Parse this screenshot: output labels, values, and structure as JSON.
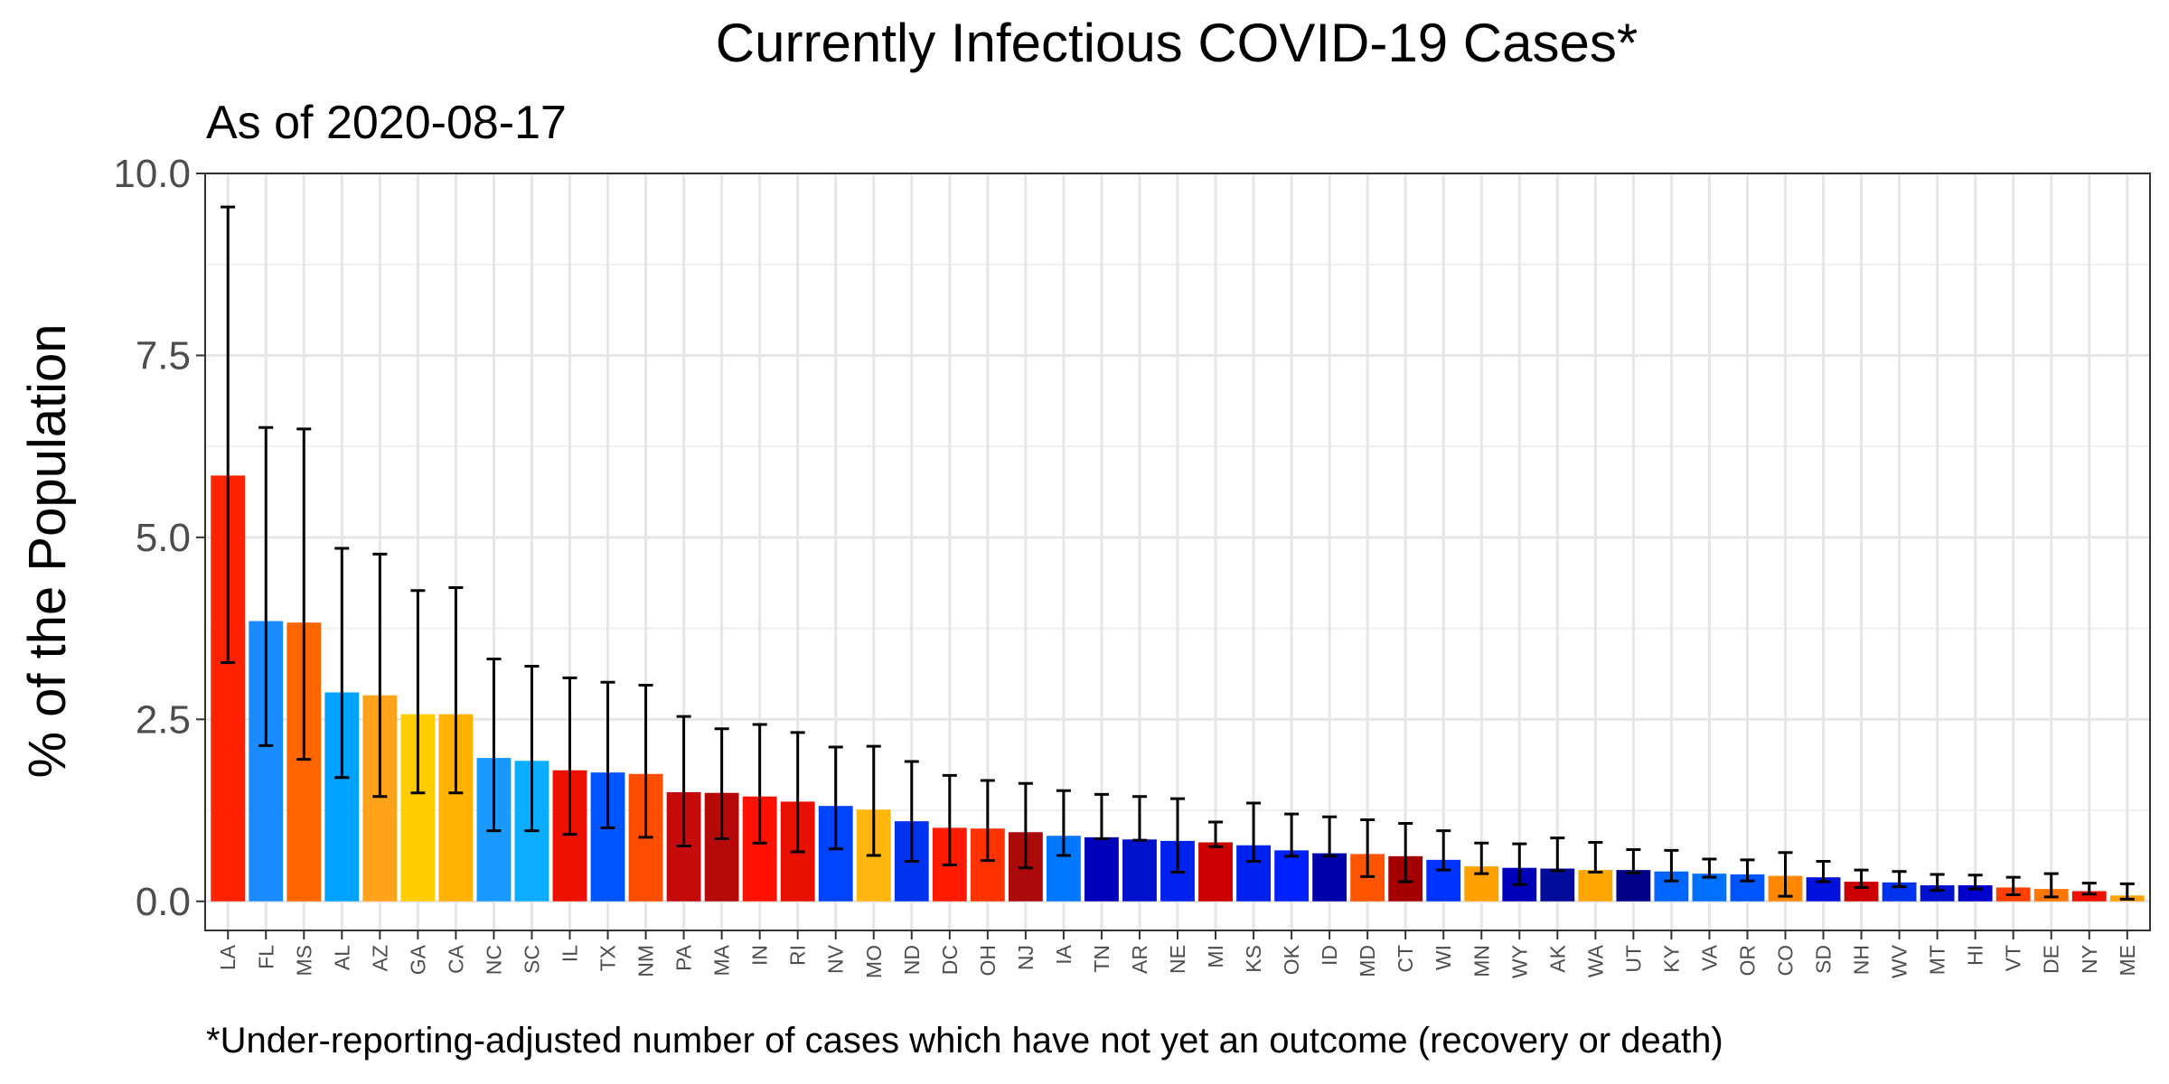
{
  "chart_data": {
    "type": "bar",
    "title": "Currently Infectious COVID-19 Cases*",
    "subtitle": "As of 2020-08-17",
    "ylabel": "% of the Population",
    "xlabel": "",
    "caption": "*Under-reporting-adjusted number of cases which have not yet an outcome (recovery or death)",
    "ylim": [
      -0.4,
      10.0
    ],
    "yticks": [
      0.0,
      2.5,
      5.0,
      7.5,
      10.0
    ],
    "ytick_labels": [
      "0.0",
      "2.5",
      "5.0",
      "7.5",
      "10.0"
    ],
    "grid": true,
    "error_bars": true,
    "categories": [
      "LA",
      "FL",
      "MS",
      "AL",
      "AZ",
      "GA",
      "CA",
      "NC",
      "SC",
      "IL",
      "TX",
      "NM",
      "PA",
      "MA",
      "IN",
      "RI",
      "NV",
      "MO",
      "ND",
      "DC",
      "OH",
      "NJ",
      "IA",
      "TN",
      "AR",
      "NE",
      "MI",
      "KS",
      "OK",
      "ID",
      "MD",
      "CT",
      "WI",
      "MN",
      "WY",
      "AK",
      "WA",
      "UT",
      "KY",
      "VA",
      "OR",
      "CO",
      "SD",
      "NH",
      "WV",
      "MT",
      "HI",
      "VT",
      "DE",
      "NY",
      "ME"
    ],
    "values": [
      5.85,
      3.85,
      3.83,
      2.87,
      2.83,
      2.57,
      2.57,
      1.97,
      1.93,
      1.8,
      1.77,
      1.75,
      1.5,
      1.49,
      1.44,
      1.37,
      1.31,
      1.26,
      1.1,
      1.01,
      1.0,
      0.95,
      0.9,
      0.88,
      0.85,
      0.83,
      0.81,
      0.77,
      0.7,
      0.66,
      0.65,
      0.62,
      0.57,
      0.48,
      0.46,
      0.45,
      0.43,
      0.43,
      0.41,
      0.38,
      0.37,
      0.35,
      0.33,
      0.27,
      0.26,
      0.22,
      0.22,
      0.19,
      0.17,
      0.14,
      0.08
    ],
    "lower": [
      3.28,
      2.14,
      1.95,
      1.7,
      1.44,
      1.49,
      1.49,
      0.97,
      0.97,
      0.92,
      1.01,
      0.88,
      0.76,
      0.86,
      0.8,
      0.68,
      0.72,
      0.63,
      0.55,
      0.5,
      0.56,
      0.46,
      0.63,
      0.86,
      0.84,
      0.4,
      0.75,
      0.55,
      0.62,
      0.62,
      0.34,
      0.27,
      0.43,
      0.38,
      0.23,
      0.42,
      0.4,
      0.39,
      0.28,
      0.33,
      0.28,
      0.07,
      0.27,
      0.19,
      0.2,
      0.15,
      0.17,
      0.09,
      0.06,
      0.1,
      0.03
    ],
    "upper": [
      9.54,
      6.51,
      6.49,
      4.85,
      4.77,
      4.27,
      4.31,
      3.33,
      3.23,
      3.07,
      3.01,
      2.97,
      2.54,
      2.37,
      2.43,
      2.32,
      2.12,
      2.13,
      1.92,
      1.73,
      1.66,
      1.62,
      1.52,
      1.47,
      1.44,
      1.41,
      1.09,
      1.35,
      1.2,
      1.16,
      1.12,
      1.07,
      0.97,
      0.8,
      0.79,
      0.87,
      0.81,
      0.71,
      0.7,
      0.58,
      0.57,
      0.67,
      0.55,
      0.43,
      0.41,
      0.37,
      0.36,
      0.33,
      0.38,
      0.25,
      0.24
    ],
    "colors": [
      "#FF2200",
      "#1A8CFF",
      "#FF6600",
      "#00A2FF",
      "#FFA31A",
      "#FFCC00",
      "#FFB300",
      "#1A99FF",
      "#0AADFF",
      "#EE1100",
      "#0055FF",
      "#FF4D00",
      "#C40A0A",
      "#B50808",
      "#FF1100",
      "#E81000",
      "#0044FF",
      "#FFB60F",
      "#0033EE",
      "#FF1A00",
      "#FF3300",
      "#AA0A0A",
      "#0077FF",
      "#0000BB",
      "#0011CC",
      "#0022EE",
      "#CC0000",
      "#0022EE",
      "#0022FF",
      "#0000AA",
      "#FF5500",
      "#A50000",
      "#0033FF",
      "#FFA100",
      "#0000BB",
      "#000C99",
      "#FFA500",
      "#000088",
      "#0066FF",
      "#0070FF",
      "#0055FF",
      "#FF8800",
      "#0011DD",
      "#CC0000",
      "#0033EE",
      "#0011CC",
      "#0000CC",
      "#FF4000",
      "#FF7700",
      "#EE1100",
      "#FFA200"
    ]
  }
}
